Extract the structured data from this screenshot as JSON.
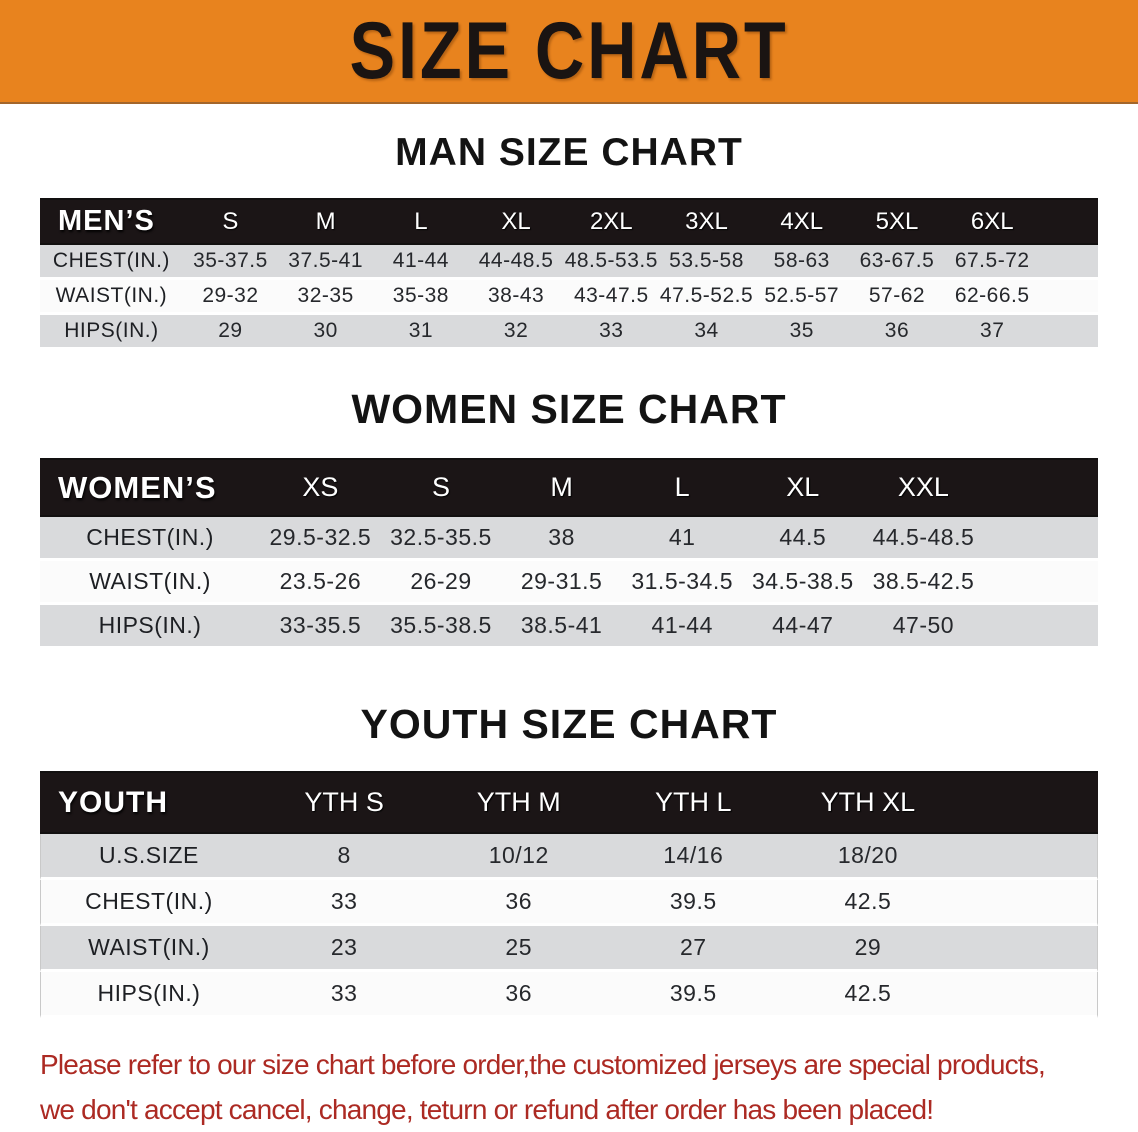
{
  "banner": {
    "title": "SIZE CHART",
    "bg_color": "#E8831E",
    "text_color": "#1a1412"
  },
  "colors": {
    "table_header_bg": "#1b1516",
    "table_header_text": "#ffffff",
    "row_shade": "#d9dadc",
    "row_plain": "#fbfbfb",
    "disclaimer_red": "#AC2A23"
  },
  "sections": [
    {
      "heading": "MAN SIZE CHART",
      "table": {
        "header_label": "MEN’S",
        "columns": [
          "S",
          "M",
          "L",
          "XL",
          "2XL",
          "3XL",
          "4XL",
          "5XL",
          "6XL"
        ],
        "rows": [
          {
            "label": "CHEST(IN.)",
            "values": [
              "35-37.5",
              "37.5-41",
              "41-44",
              "44-48.5",
              "48.5-53.5",
              "53.5-58",
              "58-63",
              "63-67.5",
              "67.5-72"
            ]
          },
          {
            "label": "WAIST(IN.)",
            "values": [
              "29-32",
              "32-35",
              "35-38",
              "38-43",
              "43-47.5",
              "47.5-52.5",
              "52.5-57",
              "57-62",
              "62-66.5"
            ]
          },
          {
            "label": "HIPS(IN.)",
            "values": [
              "29",
              "30",
              "31",
              "32",
              "33",
              "34",
              "35",
              "36",
              "37"
            ]
          }
        ]
      }
    },
    {
      "heading": "WOMEN SIZE CHART",
      "table": {
        "header_label": "WOMEN’S",
        "columns": [
          "XS",
          "S",
          "M",
          "L",
          "XL",
          "XXL"
        ],
        "rows": [
          {
            "label": "CHEST(IN.)",
            "values": [
              "29.5-32.5",
              "32.5-35.5",
              "38",
              "41",
              "44.5",
              "44.5-48.5"
            ]
          },
          {
            "label": "WAIST(IN.)",
            "values": [
              "23.5-26",
              "26-29",
              "29-31.5",
              "31.5-34.5",
              "34.5-38.5",
              "38.5-42.5"
            ]
          },
          {
            "label": "HIPS(IN.)",
            "values": [
              "33-35.5",
              "35.5-38.5",
              "38.5-41",
              "41-44",
              "44-47",
              "47-50"
            ]
          }
        ]
      }
    },
    {
      "heading": "YOUTH SIZE CHART",
      "table": {
        "header_label": "YOUTH",
        "columns": [
          "YTH S",
          "YTH M",
          "YTH L",
          "YTH XL"
        ],
        "rows": [
          {
            "label": "U.S.SIZE",
            "values": [
              "8",
              "10/12",
              "14/16",
              "18/20"
            ]
          },
          {
            "label": "CHEST(IN.)",
            "values": [
              "33",
              "36",
              "39.5",
              "42.5"
            ]
          },
          {
            "label": "WAIST(IN.)",
            "values": [
              "23",
              "25",
              "27",
              "29"
            ]
          },
          {
            "label": "HIPS(IN.)",
            "values": [
              "33",
              "36",
              "39.5",
              "42.5"
            ]
          }
        ]
      }
    }
  ],
  "disclaimer": {
    "line1": "Please refer to our size chart before order,the customized jerseys are special products,",
    "line2": "we don't accept cancel, change, teturn or refund after order has been placed!"
  }
}
